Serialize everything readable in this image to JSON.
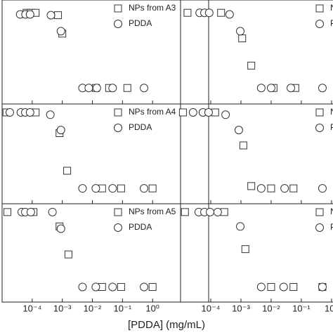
{
  "chart_data": [
    {
      "type": "scatter",
      "xscale": "log",
      "xlim": [
        1e-05,
        8.5
      ],
      "ylim": [
        -0.2,
        1.1
      ],
      "xticks": [
        0.0001,
        0.001,
        0.01,
        0.1,
        1
      ],
      "legend": "upper right",
      "series": [
        {
          "name": "NPs from A3",
          "marker": "square",
          "color": "#333333",
          "x": [
            6.5e-05,
            9e-05,
            0.00013,
            0.00072,
            0.001,
            0.013,
            0.036,
            0.145
          ],
          "values": [
            0.94,
            0.94,
            0.94,
            0.91,
            0.68,
            0,
            0,
            0
          ]
        },
        {
          "name": "PDDA",
          "marker": "circle",
          "color": "#333333",
          "x": [
            4e-05,
            6e-05,
            8.5e-05,
            0.00042,
            0.0009,
            0.0047,
            0.0076,
            0.014,
            0.047,
            0.52
          ],
          "values": [
            0.92,
            0.92,
            0.92,
            0.91,
            0.71,
            0,
            0,
            0,
            0,
            0
          ]
        }
      ]
    },
    {
      "type": "scatter",
      "xscale": "log",
      "xlim": [
        1e-05,
        1.12
      ],
      "ylim": [
        -0.2,
        1.1
      ],
      "xticks": [
        0.0001,
        0.001,
        0.01,
        0.1,
        1
      ],
      "legend": "upper right",
      "series": [
        {
          "name": "NPs fro",
          "marker": "square",
          "color": "#333333",
          "x": [
            1.7e-05,
            0.00022,
            0.0011,
            0.0022,
            0.012,
            0.063
          ],
          "values": [
            0.94,
            0.94,
            0.62,
            0.28,
            0,
            0
          ]
        },
        {
          "name": "PDDA",
          "marker": "circle",
          "color": "#333333",
          "x": [
            4.3e-05,
            6.2e-05,
            8.9e-05,
            0.00042,
            0.00095,
            0.0047,
            0.01,
            0.045,
            0.5
          ],
          "values": [
            0.94,
            0.94,
            0.94,
            0.92,
            0.71,
            0,
            0,
            0,
            0
          ]
        }
      ]
    },
    {
      "type": "scatter",
      "xscale": "log",
      "xlim": [
        1e-05,
        8.5
      ],
      "ylim": [
        -0.2,
        1.1
      ],
      "xticks": [
        0.0001,
        0.001,
        0.01,
        0.1,
        1
      ],
      "legend": "upper right",
      "series": [
        {
          "name": "NPs from A4",
          "marker": "square",
          "color": "#333333",
          "x": [
            1.4e-05,
            0.00013,
            0.00081,
            0.00145,
            0.021,
            0.09,
            1
          ],
          "values": [
            0.99,
            0.99,
            0.72,
            0.23,
            0,
            0,
            0
          ]
        },
        {
          "name": "PDDA",
          "marker": "circle",
          "color": "#333333",
          "x": [
            1.8e-05,
            4.2e-05,
            5.9e-05,
            8.5e-05,
            0.0004,
            0.0009,
            0.0047,
            0.013,
            0.047,
            0.52
          ],
          "values": [
            0.99,
            0.99,
            0.99,
            0.99,
            0.96,
            0.76,
            0,
            0,
            0,
            0
          ]
        }
      ]
    },
    {
      "type": "scatter",
      "xscale": "log",
      "xlim": [
        1e-05,
        1.12
      ],
      "ylim": [
        -0.2,
        1.1
      ],
      "xticks": [
        0.0001,
        0.001,
        0.01,
        0.1,
        1
      ],
      "legend": "upper right",
      "series": [
        {
          "name": "NPs fr",
          "marker": "square",
          "color": "#333333",
          "x": [
            1.2e-05,
            0.00014,
            0.0012,
            0.0022,
            0.01,
            0.055
          ],
          "values": [
            0.99,
            0.99,
            0.56,
            0.03,
            0,
            0
          ]
        },
        {
          "name": "PDDA",
          "marker": "circle",
          "color": "#333333",
          "x": [
            2.6e-05,
            5.5e-05,
            8.5e-05,
            0.00031,
            0.00085,
            0.0047,
            0.028,
            0.5
          ],
          "values": [
            0.99,
            0.99,
            0.99,
            0.96,
            0.76,
            0,
            0,
            0
          ]
        }
      ]
    },
    {
      "type": "scatter",
      "xscale": "log",
      "xlim": [
        1e-05,
        8.5
      ],
      "ylim": [
        -0.2,
        1.1
      ],
      "xticks": [
        {
          "value": 0.0001,
          "label": "10⁻⁴"
        },
        {
          "value": 0.001,
          "label": "10⁻³"
        },
        {
          "value": 0.01,
          "label": "10⁻²"
        },
        {
          "value": 0.1,
          "label": "10⁻¹"
        },
        {
          "value": 1,
          "label": "10⁰"
        }
      ],
      "legend": "upper right",
      "series": [
        {
          "name": "NPs from A5",
          "marker": "square",
          "color": "#333333",
          "x": [
            1.5e-05,
            0.00011,
            0.00081,
            0.0016,
            0.021,
            0.09,
            1
          ],
          "values": [
            0.99,
            0.99,
            0.8,
            0.43,
            0,
            0,
            0
          ]
        },
        {
          "name": "PDDA",
          "marker": "circle",
          "color": "#333333",
          "x": [
            4.5e-05,
            5.9e-05,
            9e-05,
            0.00047,
            0.0009,
            0.0047,
            0.013,
            0.047,
            0.52
          ],
          "values": [
            0.99,
            0.99,
            0.99,
            0.99,
            0.77,
            0,
            0,
            0,
            0
          ]
        }
      ]
    },
    {
      "type": "scatter",
      "xscale": "log",
      "xlim": [
        1e-05,
        1.12
      ],
      "ylim": [
        -0.2,
        1.1
      ],
      "xticks": [
        {
          "value": 0.0001,
          "label": "10⁻⁴"
        },
        {
          "value": 0.001,
          "label": "10⁻³"
        },
        {
          "value": 0.01,
          "label": "10⁻²"
        },
        {
          "value": 0.1,
          "label": "10⁻¹"
        },
        {
          "value": 1,
          "label": "10⁰"
        }
      ],
      "legend": "upper right",
      "series": [
        {
          "name": "NPs fro",
          "marker": "square",
          "color": "#333333",
          "x": [
            1.4e-05,
            0.00028,
            0.0014,
            0.01,
            0.055,
            0.5
          ],
          "values": [
            0.99,
            0.99,
            0.5,
            0,
            0,
            0
          ]
        },
        {
          "name": "PDDA",
          "marker": "circle",
          "color": "#333333",
          "x": [
            4e-05,
            6.2e-05,
            9.5e-05,
            0.00017,
            0.00095,
            0.0047,
            0.026,
            0.5
          ],
          "values": [
            0.99,
            0.99,
            0.99,
            0.99,
            0.8,
            0,
            0,
            0
          ]
        }
      ]
    }
  ],
  "xlabel": "[PDDA] (mg/mL)"
}
